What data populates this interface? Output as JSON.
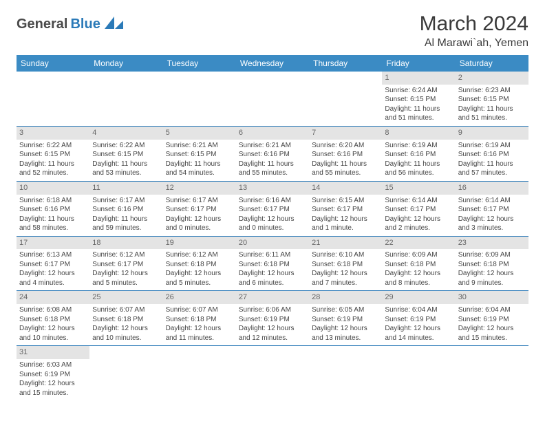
{
  "logo": {
    "part1": "General",
    "part2": "Blue"
  },
  "title": "March 2024",
  "location": "Al Marawi`ah, Yemen",
  "colors": {
    "header_bg": "#3b8bc4",
    "header_text": "#ffffff",
    "daynum_bg": "#e4e4e4",
    "row_divider": "#2b7ab8",
    "logo_gray": "#4a4a4a",
    "logo_blue": "#2b7ab8"
  },
  "weekdays": [
    "Sunday",
    "Monday",
    "Tuesday",
    "Wednesday",
    "Thursday",
    "Friday",
    "Saturday"
  ],
  "weeks": [
    [
      null,
      null,
      null,
      null,
      null,
      {
        "n": "1",
        "sr": "Sunrise: 6:24 AM",
        "ss": "Sunset: 6:15 PM",
        "dl": "Daylight: 11 hours and 51 minutes."
      },
      {
        "n": "2",
        "sr": "Sunrise: 6:23 AM",
        "ss": "Sunset: 6:15 PM",
        "dl": "Daylight: 11 hours and 51 minutes."
      }
    ],
    [
      {
        "n": "3",
        "sr": "Sunrise: 6:22 AM",
        "ss": "Sunset: 6:15 PM",
        "dl": "Daylight: 11 hours and 52 minutes."
      },
      {
        "n": "4",
        "sr": "Sunrise: 6:22 AM",
        "ss": "Sunset: 6:15 PM",
        "dl": "Daylight: 11 hours and 53 minutes."
      },
      {
        "n": "5",
        "sr": "Sunrise: 6:21 AM",
        "ss": "Sunset: 6:15 PM",
        "dl": "Daylight: 11 hours and 54 minutes."
      },
      {
        "n": "6",
        "sr": "Sunrise: 6:21 AM",
        "ss": "Sunset: 6:16 PM",
        "dl": "Daylight: 11 hours and 55 minutes."
      },
      {
        "n": "7",
        "sr": "Sunrise: 6:20 AM",
        "ss": "Sunset: 6:16 PM",
        "dl": "Daylight: 11 hours and 55 minutes."
      },
      {
        "n": "8",
        "sr": "Sunrise: 6:19 AM",
        "ss": "Sunset: 6:16 PM",
        "dl": "Daylight: 11 hours and 56 minutes."
      },
      {
        "n": "9",
        "sr": "Sunrise: 6:19 AM",
        "ss": "Sunset: 6:16 PM",
        "dl": "Daylight: 11 hours and 57 minutes."
      }
    ],
    [
      {
        "n": "10",
        "sr": "Sunrise: 6:18 AM",
        "ss": "Sunset: 6:16 PM",
        "dl": "Daylight: 11 hours and 58 minutes."
      },
      {
        "n": "11",
        "sr": "Sunrise: 6:17 AM",
        "ss": "Sunset: 6:16 PM",
        "dl": "Daylight: 11 hours and 59 minutes."
      },
      {
        "n": "12",
        "sr": "Sunrise: 6:17 AM",
        "ss": "Sunset: 6:17 PM",
        "dl": "Daylight: 12 hours and 0 minutes."
      },
      {
        "n": "13",
        "sr": "Sunrise: 6:16 AM",
        "ss": "Sunset: 6:17 PM",
        "dl": "Daylight: 12 hours and 0 minutes."
      },
      {
        "n": "14",
        "sr": "Sunrise: 6:15 AM",
        "ss": "Sunset: 6:17 PM",
        "dl": "Daylight: 12 hours and 1 minute."
      },
      {
        "n": "15",
        "sr": "Sunrise: 6:14 AM",
        "ss": "Sunset: 6:17 PM",
        "dl": "Daylight: 12 hours and 2 minutes."
      },
      {
        "n": "16",
        "sr": "Sunrise: 6:14 AM",
        "ss": "Sunset: 6:17 PM",
        "dl": "Daylight: 12 hours and 3 minutes."
      }
    ],
    [
      {
        "n": "17",
        "sr": "Sunrise: 6:13 AM",
        "ss": "Sunset: 6:17 PM",
        "dl": "Daylight: 12 hours and 4 minutes."
      },
      {
        "n": "18",
        "sr": "Sunrise: 6:12 AM",
        "ss": "Sunset: 6:17 PM",
        "dl": "Daylight: 12 hours and 5 minutes."
      },
      {
        "n": "19",
        "sr": "Sunrise: 6:12 AM",
        "ss": "Sunset: 6:18 PM",
        "dl": "Daylight: 12 hours and 5 minutes."
      },
      {
        "n": "20",
        "sr": "Sunrise: 6:11 AM",
        "ss": "Sunset: 6:18 PM",
        "dl": "Daylight: 12 hours and 6 minutes."
      },
      {
        "n": "21",
        "sr": "Sunrise: 6:10 AM",
        "ss": "Sunset: 6:18 PM",
        "dl": "Daylight: 12 hours and 7 minutes."
      },
      {
        "n": "22",
        "sr": "Sunrise: 6:09 AM",
        "ss": "Sunset: 6:18 PM",
        "dl": "Daylight: 12 hours and 8 minutes."
      },
      {
        "n": "23",
        "sr": "Sunrise: 6:09 AM",
        "ss": "Sunset: 6:18 PM",
        "dl": "Daylight: 12 hours and 9 minutes."
      }
    ],
    [
      {
        "n": "24",
        "sr": "Sunrise: 6:08 AM",
        "ss": "Sunset: 6:18 PM",
        "dl": "Daylight: 12 hours and 10 minutes."
      },
      {
        "n": "25",
        "sr": "Sunrise: 6:07 AM",
        "ss": "Sunset: 6:18 PM",
        "dl": "Daylight: 12 hours and 10 minutes."
      },
      {
        "n": "26",
        "sr": "Sunrise: 6:07 AM",
        "ss": "Sunset: 6:18 PM",
        "dl": "Daylight: 12 hours and 11 minutes."
      },
      {
        "n": "27",
        "sr": "Sunrise: 6:06 AM",
        "ss": "Sunset: 6:19 PM",
        "dl": "Daylight: 12 hours and 12 minutes."
      },
      {
        "n": "28",
        "sr": "Sunrise: 6:05 AM",
        "ss": "Sunset: 6:19 PM",
        "dl": "Daylight: 12 hours and 13 minutes."
      },
      {
        "n": "29",
        "sr": "Sunrise: 6:04 AM",
        "ss": "Sunset: 6:19 PM",
        "dl": "Daylight: 12 hours and 14 minutes."
      },
      {
        "n": "30",
        "sr": "Sunrise: 6:04 AM",
        "ss": "Sunset: 6:19 PM",
        "dl": "Daylight: 12 hours and 15 minutes."
      }
    ],
    [
      {
        "n": "31",
        "sr": "Sunrise: 6:03 AM",
        "ss": "Sunset: 6:19 PM",
        "dl": "Daylight: 12 hours and 15 minutes."
      },
      null,
      null,
      null,
      null,
      null,
      null
    ]
  ]
}
